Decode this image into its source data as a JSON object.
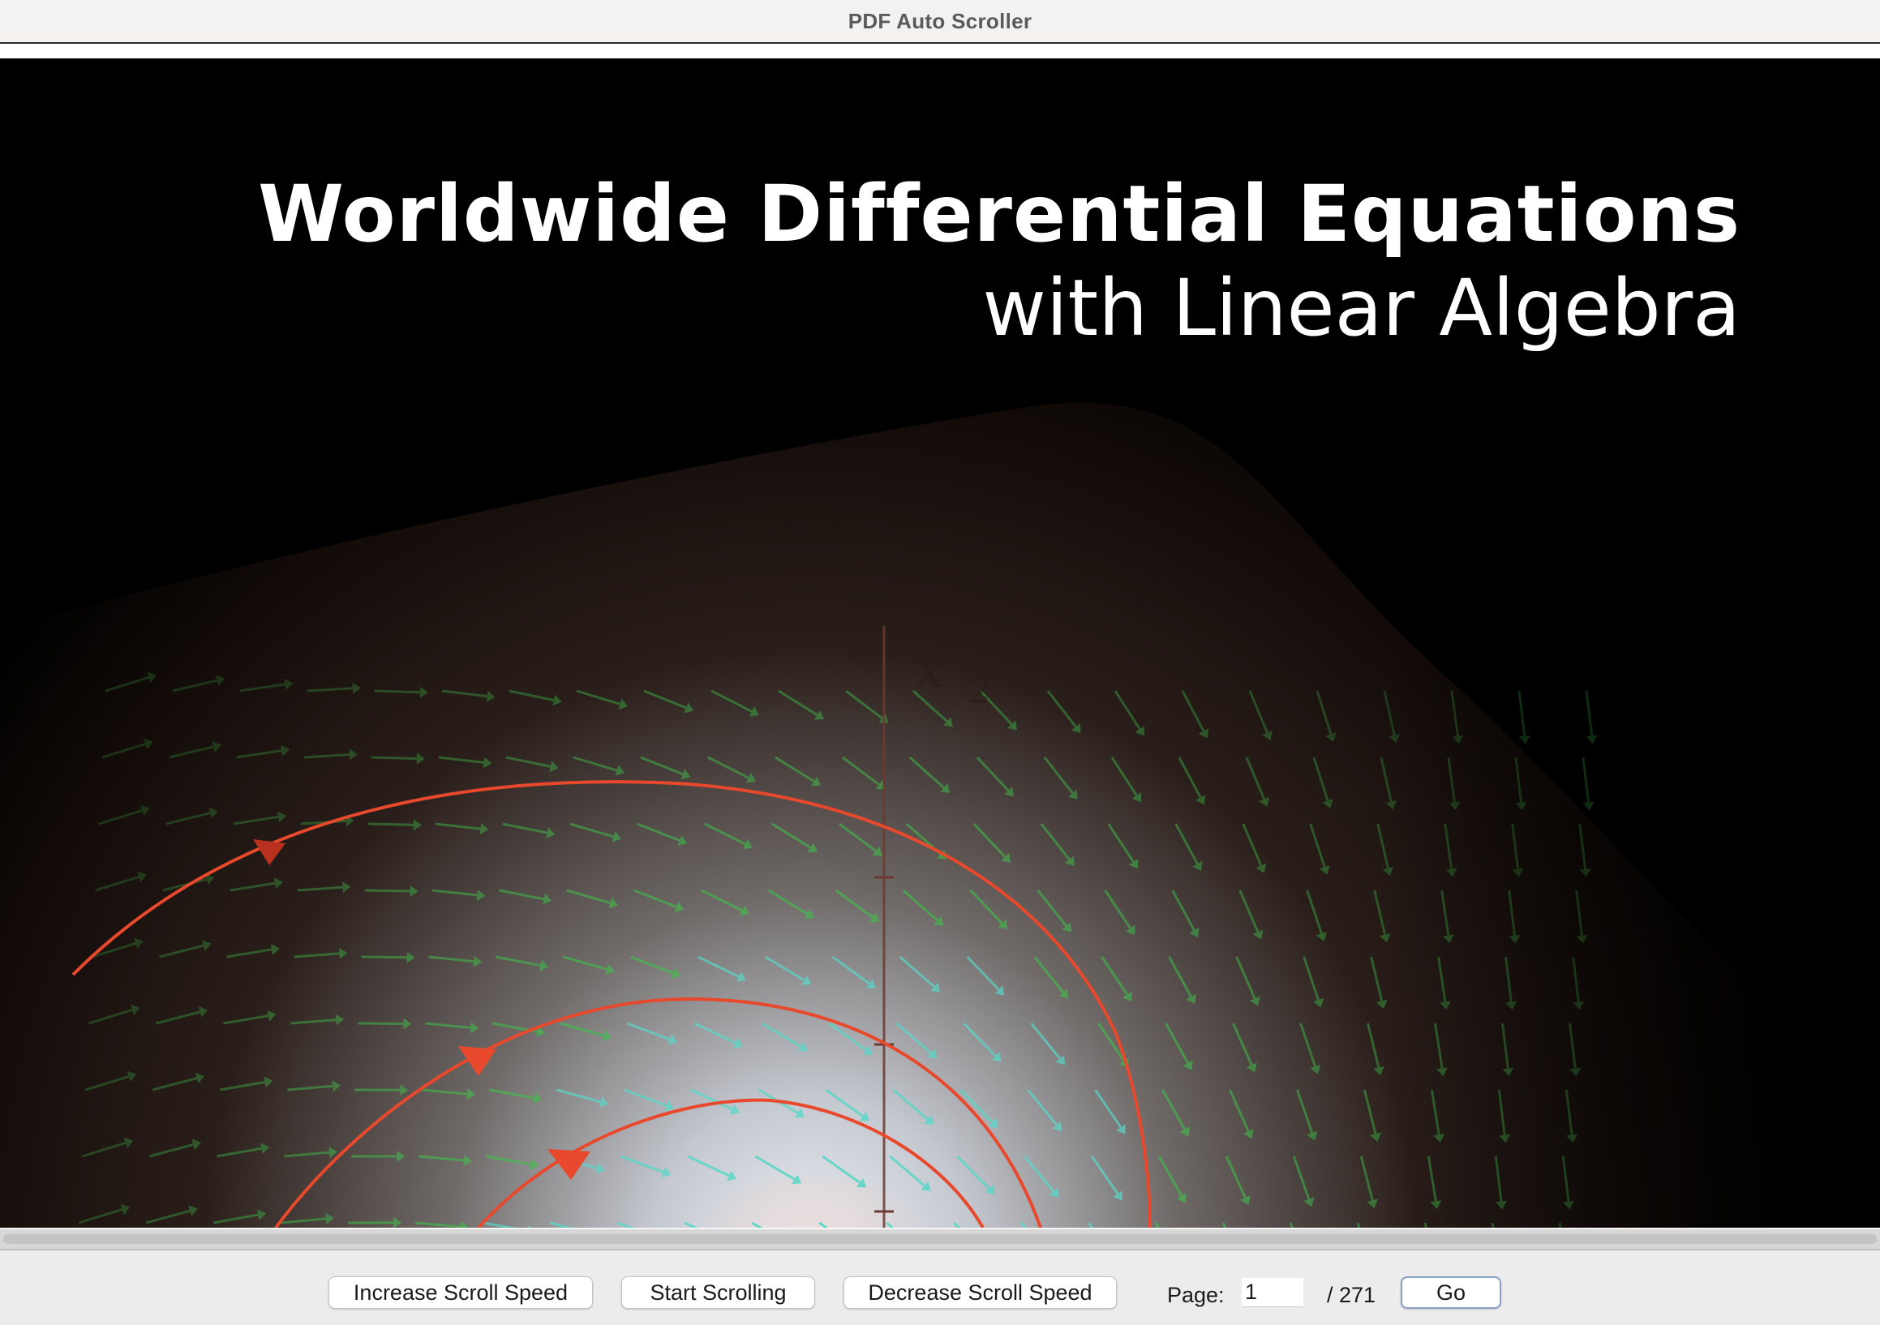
{
  "window": {
    "title": "PDF Auto Scroller"
  },
  "document": {
    "title_line1": "Worldwide Differential Equations",
    "title_line2": "with Linear Algebra"
  },
  "controls": {
    "increase_label": "Increase Scroll Speed",
    "start_label": "Start Scrolling",
    "decrease_label": "Decrease Scroll Speed",
    "page_label": "Page:",
    "page_value": "1",
    "page_total": "/ 271",
    "go_label": "Go"
  },
  "colors": {
    "trajectory": "#e8492c",
    "vector_field": "#3fbf4a",
    "vector_field_light": "#5ad7c8",
    "background": "#000000"
  }
}
